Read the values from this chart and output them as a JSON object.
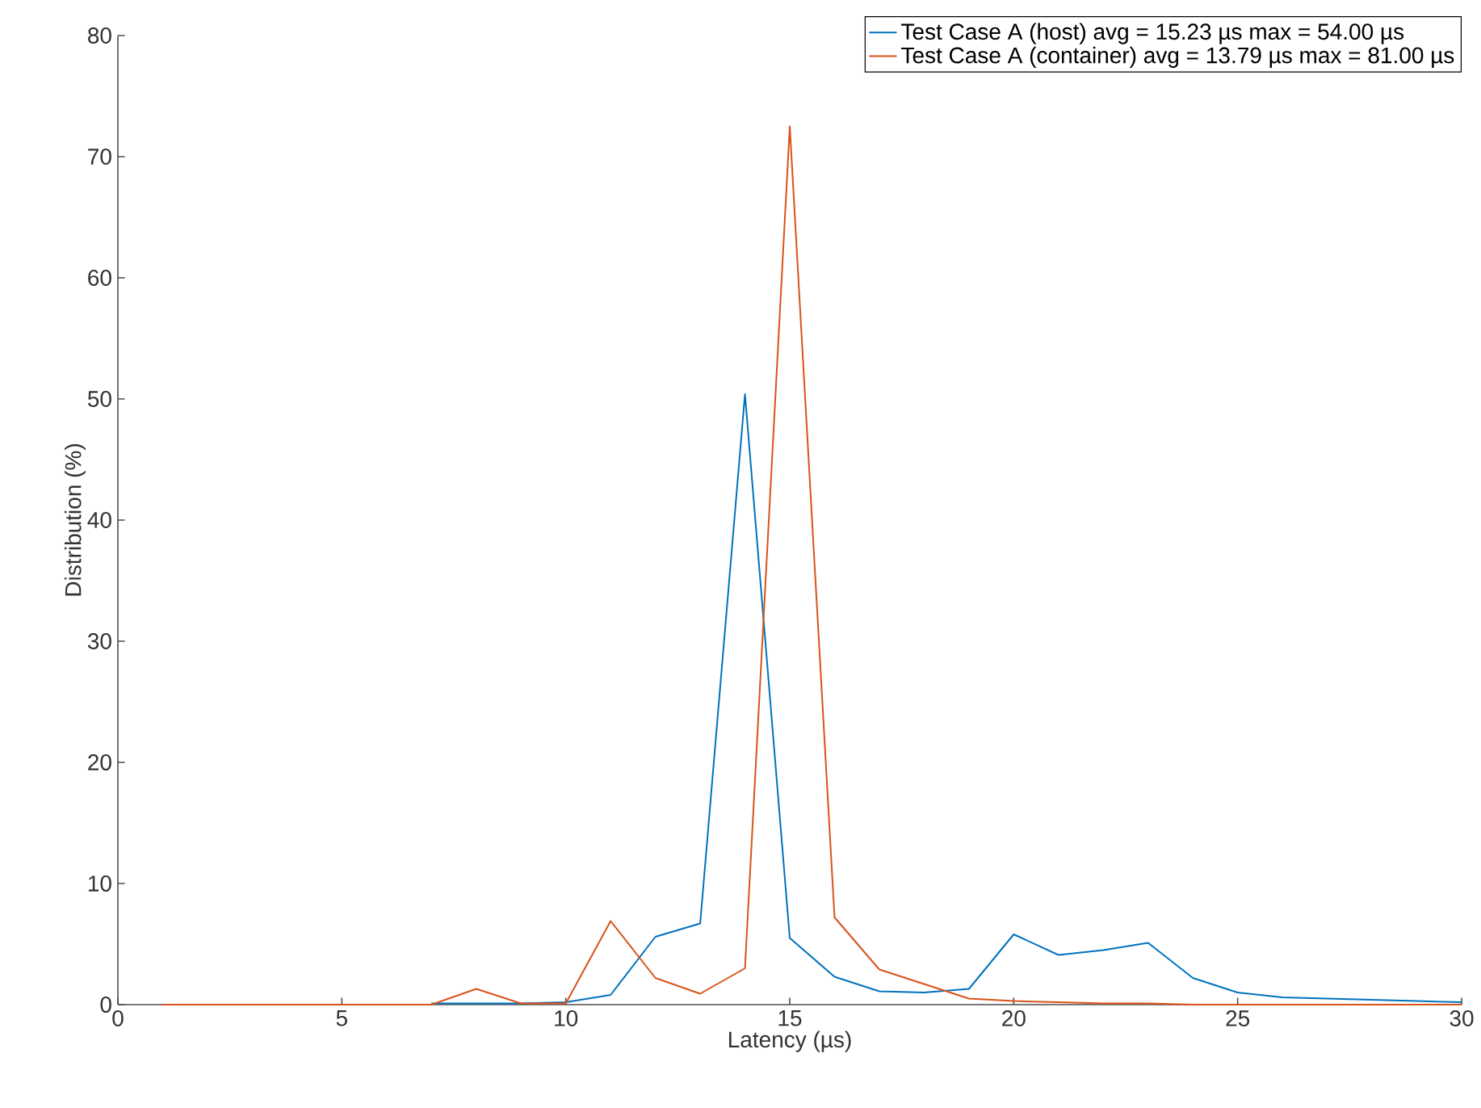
{
  "chart_data": {
    "type": "line",
    "xlabel": "Latency (µs)",
    "ylabel": "Distribution (%)",
    "x": [
      1,
      2,
      3,
      4,
      5,
      6,
      7,
      8,
      9,
      10,
      11,
      12,
      13,
      14,
      15,
      16,
      17,
      18,
      19,
      20,
      21,
      22,
      23,
      24,
      25,
      26,
      27,
      28,
      29,
      30
    ],
    "series": [
      {
        "name": "Test Case A (host)      avg = 15.23 µs max = 54.00 µs",
        "color": "#0072bd",
        "values": [
          null,
          null,
          null,
          null,
          null,
          null,
          0.1,
          0.1,
          0.1,
          0.2,
          0.8,
          5.6,
          6.7,
          50.4,
          5.5,
          2.3,
          1.1,
          1.0,
          1.3,
          5.8,
          4.1,
          4.5,
          5.1,
          2.2,
          1.0,
          0.6,
          0.5,
          0.4,
          0.3,
          0.2
        ]
      },
      {
        "name": "Test Case A (container) avg = 13.79 µs max = 81.00 µs",
        "color": "#d95319",
        "values": [
          0,
          0,
          0,
          0,
          0,
          0,
          0,
          1.3,
          0.1,
          0.1,
          6.9,
          2.2,
          0.9,
          3.0,
          72.5,
          7.2,
          2.9,
          1.7,
          0.5,
          0.3,
          0.2,
          0.1,
          0.1,
          0,
          0,
          0,
          0,
          0,
          0,
          0
        ]
      }
    ],
    "xlim": [
      0,
      30
    ],
    "ylim": [
      0,
      80
    ],
    "xticks": [
      0,
      5,
      10,
      15,
      20,
      25,
      30
    ],
    "yticks": [
      0,
      10,
      20,
      30,
      40,
      50,
      60,
      70,
      80
    ],
    "grid": false,
    "legend": "top right",
    "marker": "none",
    "line_style": "solid"
  }
}
